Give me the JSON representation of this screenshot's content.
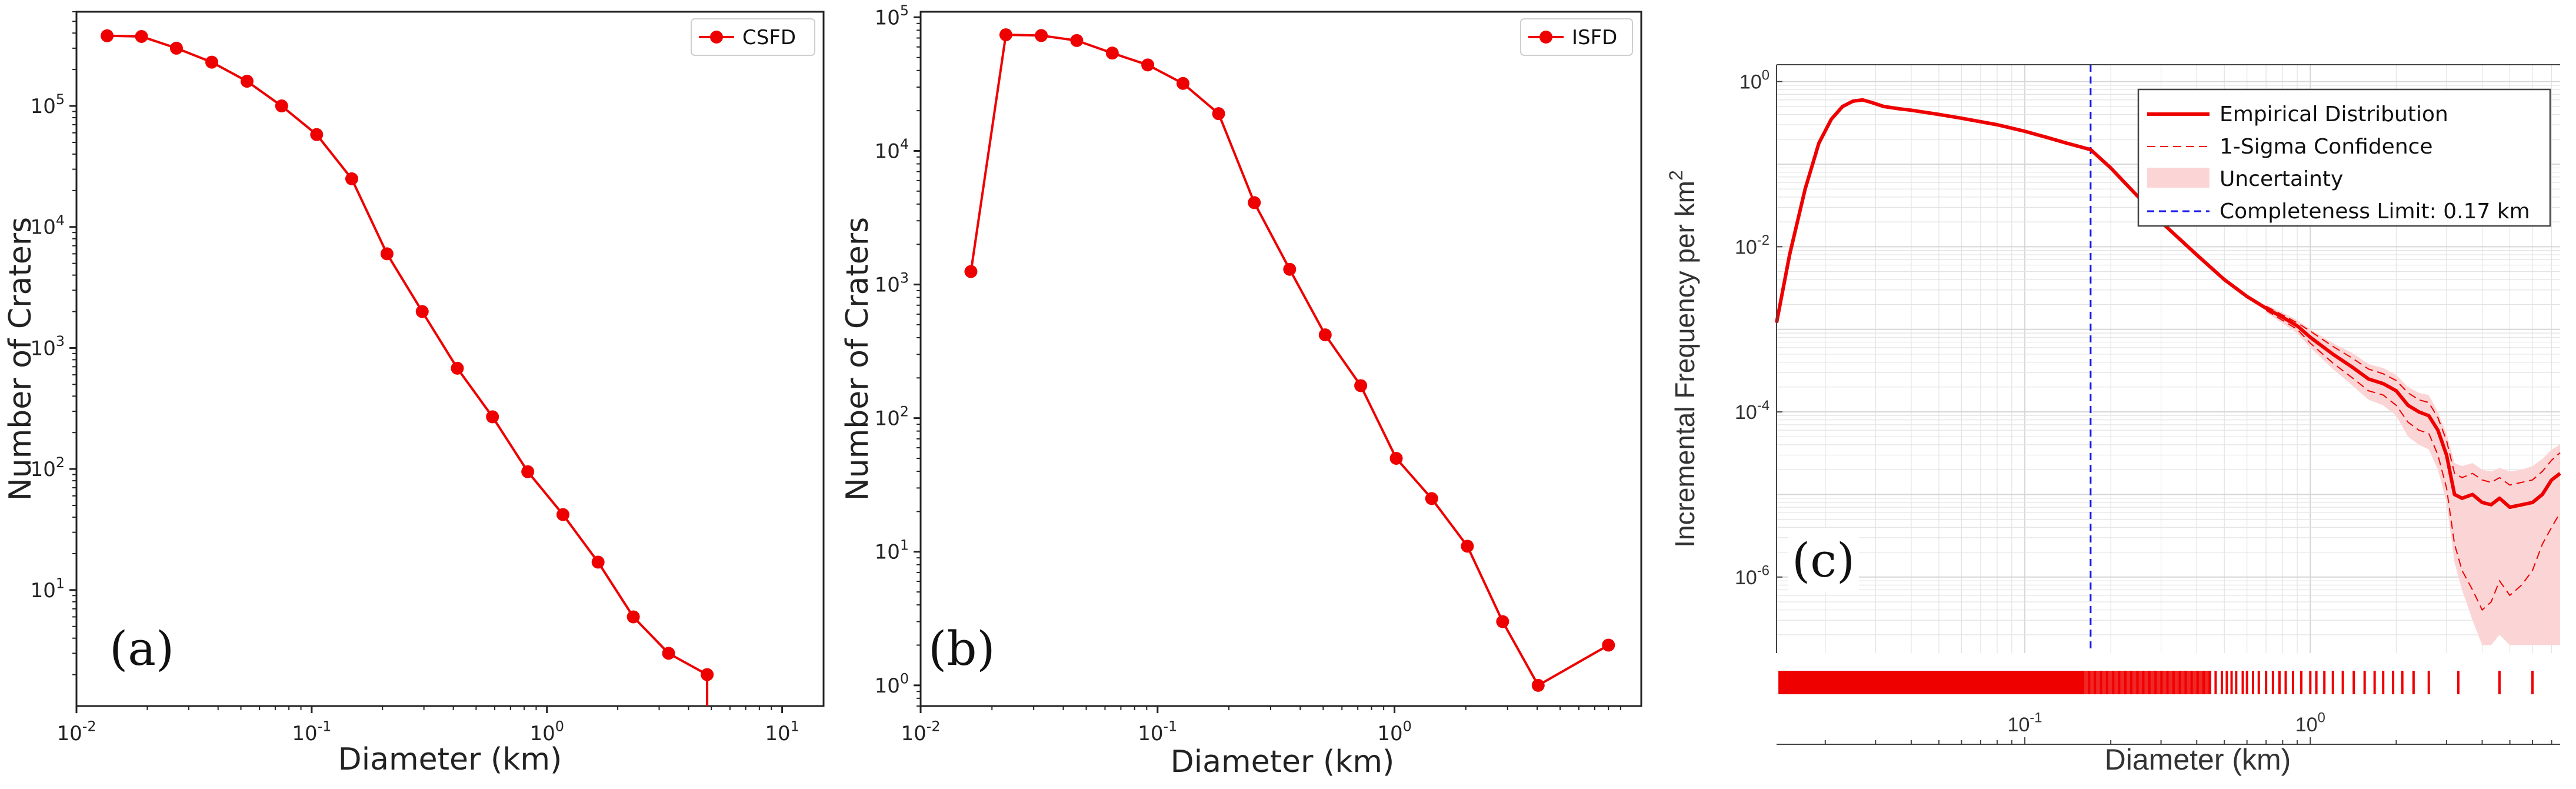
{
  "colors": {
    "series": "#ee0000",
    "band": "#fbd5d5",
    "limit": "#1a1aee",
    "axis": "#222222",
    "grid": "#e3e3e3"
  },
  "chart_data": [
    {
      "id": "a",
      "type": "line",
      "panel_label": "(a)",
      "xlabel": "Diameter (km)",
      "ylabel": "Number of Craters",
      "xscale": "log",
      "yscale": "log",
      "xlim": [
        0.01,
        15
      ],
      "ylim": [
        1.1,
        600000
      ],
      "xticks": [
        {
          "v": 0.01,
          "b": "10",
          "e": "-2"
        },
        {
          "v": 0.1,
          "b": "10",
          "e": "-1"
        },
        {
          "v": 1,
          "b": "10",
          "e": "0"
        },
        {
          "v": 10,
          "b": "10",
          "e": "1"
        }
      ],
      "yticks": [
        {
          "v": 10,
          "b": "10",
          "e": "1"
        },
        {
          "v": 100,
          "b": "10",
          "e": "2"
        },
        {
          "v": 1000,
          "b": "10",
          "e": "3"
        },
        {
          "v": 10000,
          "b": "10",
          "e": "4"
        },
        {
          "v": 100000,
          "b": "10",
          "e": "5"
        }
      ],
      "legend": "CSFD",
      "legend_position": "top-right",
      "markers": true,
      "x": [
        0.0135,
        0.0189,
        0.0266,
        0.0376,
        0.0531,
        0.0745,
        0.105,
        0.148,
        0.209,
        0.295,
        0.416,
        0.587,
        0.829,
        1.17,
        1.65,
        2.33,
        3.29,
        4.8
      ],
      "y": [
        380000,
        375000,
        300000,
        230000,
        160000,
        100000,
        58000,
        25000,
        6000,
        2000,
        680,
        270,
        95,
        42,
        17,
        6,
        3,
        2
      ],
      "drop_to_axis_at": 4.8
    },
    {
      "id": "b",
      "type": "line",
      "panel_label": "(b)",
      "xlabel": "Diameter (km)",
      "ylabel": "Number of Craters",
      "xscale": "log",
      "yscale": "log",
      "xlim": [
        0.01,
        11
      ],
      "ylim": [
        0.7,
        110000
      ],
      "xticks": [
        {
          "v": 0.01,
          "b": "10",
          "e": "-2"
        },
        {
          "v": 0.1,
          "b": "10",
          "e": "-1"
        },
        {
          "v": 1,
          "b": "10",
          "e": "0"
        }
      ],
      "yticks": [
        {
          "v": 1,
          "b": "10",
          "e": "0"
        },
        {
          "v": 10,
          "b": "10",
          "e": "1"
        },
        {
          "v": 100,
          "b": "10",
          "e": "2"
        },
        {
          "v": 1000,
          "b": "10",
          "e": "3"
        },
        {
          "v": 10000,
          "b": "10",
          "e": "4"
        },
        {
          "v": 100000,
          "b": "10",
          "e": "5"
        }
      ],
      "legend": "ISFD",
      "legend_position": "top-right",
      "markers": true,
      "x": [
        0.0163,
        0.0229,
        0.0323,
        0.0456,
        0.0644,
        0.0909,
        0.128,
        0.181,
        0.256,
        0.361,
        0.51,
        0.72,
        1.017,
        1.435,
        2.03,
        2.86,
        4.04,
        8.0
      ],
      "y": [
        1250,
        74000,
        73000,
        67000,
        54000,
        44000,
        32000,
        19000,
        4100,
        1300,
        420,
        175,
        50,
        25,
        11,
        3,
        1,
        2
      ]
    },
    {
      "id": "c",
      "type": "line",
      "panel_label": "(c)",
      "xlabel": "Diameter (km)",
      "ylabel": "Incremental Frequency per km",
      "ylabel_superscript": "2",
      "xscale": "log",
      "yscale": "log",
      "xlim": [
        0.0135,
        7.5
      ],
      "ylim": [
        1.2e-07,
        1.6
      ],
      "xticks": [
        {
          "v": 0.1,
          "b": "10",
          "e": "-1"
        },
        {
          "v": 1,
          "b": "10",
          "e": "0"
        }
      ],
      "yticks": [
        {
          "v": 1e-06,
          "b": "10",
          "e": "-6"
        },
        {
          "v": 0.0001,
          "b": "10",
          "e": "-4"
        },
        {
          "v": 0.01,
          "b": "10",
          "e": "-2"
        },
        {
          "v": 1,
          "b": "10",
          "e": "0"
        }
      ],
      "legend_position": "top-right",
      "legend_entries": [
        "Empirical Distribution",
        "1-Sigma Confidence",
        "Uncertainty",
        "Completeness Limit: 0.17 km"
      ],
      "completeness_limit_km": 0.17,
      "series": [
        {
          "name": "Empirical Distribution",
          "x": [
            0.0135,
            0.015,
            0.017,
            0.019,
            0.021,
            0.023,
            0.025,
            0.027,
            0.029,
            0.032,
            0.036,
            0.04,
            0.05,
            0.06,
            0.08,
            0.1,
            0.12,
            0.14,
            0.17,
            0.2,
            0.25,
            0.3,
            0.4,
            0.5,
            0.6,
            0.7,
            0.8,
            0.9,
            1.0,
            1.2,
            1.4,
            1.6,
            1.8,
            2.0,
            2.2,
            2.4,
            2.6,
            2.8,
            3.0,
            3.2,
            3.4,
            3.7,
            4.0,
            4.3,
            4.6,
            5.0,
            5.5,
            6.0,
            6.5,
            7.0,
            7.5
          ],
          "y": [
            0.0012,
            0.008,
            0.05,
            0.18,
            0.35,
            0.5,
            0.58,
            0.6,
            0.56,
            0.5,
            0.47,
            0.45,
            0.4,
            0.36,
            0.3,
            0.25,
            0.21,
            0.18,
            0.15,
            0.09,
            0.04,
            0.02,
            0.008,
            0.004,
            0.0025,
            0.0018,
            0.0014,
            0.0011,
            0.0008,
            0.0005,
            0.00035,
            0.00025,
            0.00022,
            0.00018,
            0.00012,
            0.0001,
            9e-05,
            6e-05,
            3e-05,
            1e-05,
            9e-06,
            1e-05,
            8e-06,
            7.5e-06,
            9e-06,
            7e-06,
            7.5e-06,
            8e-06,
            1e-05,
            1.5e-05,
            1.8e-05
          ]
        },
        {
          "name": "1-Sigma Confidence (upper)",
          "x": [
            0.7,
            0.9,
            1.0,
            1.2,
            1.4,
            1.6,
            1.8,
            2.0,
            2.2,
            2.4,
            2.6,
            2.8,
            3.0,
            3.2,
            3.4,
            3.7,
            4.0,
            4.3,
            4.6,
            5.0,
            5.5,
            6.0,
            6.5,
            7.0,
            7.5
          ],
          "y": [
            0.0019,
            0.0012,
            0.00095,
            0.00062,
            0.00045,
            0.00033,
            0.00029,
            0.00024,
            0.00017,
            0.00014,
            0.00013,
            8.5e-05,
            4.5e-05,
            1.8e-05,
            1.6e-05,
            1.8e-05,
            1.5e-05,
            1.4e-05,
            1.6e-05,
            1.3e-05,
            1.4e-05,
            1.5e-05,
            1.9e-05,
            2.6e-05,
            3.2e-05
          ]
        },
        {
          "name": "1-Sigma Confidence (lower)",
          "x": [
            0.7,
            0.9,
            1.0,
            1.2,
            1.4,
            1.6,
            1.8,
            2.0,
            2.2,
            2.4,
            2.6,
            2.8,
            3.0,
            3.2,
            3.4,
            3.7,
            4.0,
            4.3,
            4.6,
            5.0,
            5.5,
            6.0,
            6.5,
            7.0,
            7.5
          ],
          "y": [
            0.0017,
            0.001,
            0.00068,
            0.00039,
            0.00026,
            0.00018,
            0.00016,
            0.00012,
            7.5e-05,
            6e-05,
            5.5e-05,
            3e-05,
            1.2e-05,
            2.5e-06,
            1.2e-06,
            7e-07,
            4e-07,
            5e-07,
            9e-07,
            6e-07,
            8e-07,
            1.2e-06,
            2.5e-06,
            4e-06,
            6e-06
          ]
        },
        {
          "name": "Uncertainty (upper)",
          "x": [
            0.7,
            0.9,
            1.0,
            1.2,
            1.4,
            1.6,
            1.8,
            2.0,
            2.2,
            2.4,
            2.6,
            2.8,
            3.0,
            3.2,
            3.4,
            3.7,
            4.0,
            4.3,
            4.6,
            5.0,
            5.5,
            6.0,
            6.5,
            7.0,
            7.5
          ],
          "y": [
            0.002,
            0.0013,
            0.001,
            0.00068,
            0.00052,
            0.00038,
            0.00034,
            0.00028,
            0.0002,
            0.00017,
            0.00016,
            0.0001,
            5.5e-05,
            2.4e-05,
            2.2e-05,
            2.4e-05,
            2e-05,
            1.9e-05,
            2.1e-05,
            1.9e-05,
            2e-05,
            2.2e-05,
            2.7e-05,
            3.5e-05,
            4e-05
          ]
        },
        {
          "name": "Uncertainty (lower)",
          "x": [
            0.7,
            0.9,
            1.0,
            1.2,
            1.4,
            1.6,
            1.8,
            2.0,
            2.2,
            2.4,
            2.6,
            2.8,
            3.0,
            3.2,
            3.4,
            3.7,
            4.0,
            4.3,
            4.6,
            5.0,
            5.5,
            6.0,
            6.5,
            7.0,
            7.5
          ],
          "y": [
            0.0016,
            0.0009,
            0.0006,
            0.00033,
            0.00021,
            0.00014,
            0.00012,
            9e-05,
            5e-05,
            4e-05,
            3.5e-05,
            2e-05,
            8e-06,
            1.5e-06,
            7e-07,
            3e-07,
            1.5e-07,
            1.5e-07,
            2e-07,
            1.5e-07,
            1.5e-07,
            1.5e-07,
            1.5e-07,
            1.5e-07,
            1.5e-07
          ]
        }
      ],
      "rug_x": [
        0.014,
        0.015,
        0.016,
        0.017,
        0.018,
        0.019,
        0.02,
        0.021,
        0.022,
        0.023,
        0.024,
        0.025,
        0.026,
        0.027,
        0.028,
        0.029,
        0.03,
        0.032,
        0.034,
        0.036,
        0.038,
        0.04,
        0.042,
        0.044,
        0.046,
        0.048,
        0.05,
        0.053,
        0.056,
        0.059,
        0.062,
        0.065,
        0.068,
        0.071,
        0.074,
        0.078,
        0.082,
        0.086,
        0.09,
        0.095,
        0.1,
        0.105,
        0.11,
        0.115,
        0.12,
        0.126,
        0.132,
        0.138,
        0.145,
        0.152,
        0.16,
        0.168,
        0.176,
        0.185,
        0.194,
        0.204,
        0.214,
        0.225,
        0.236,
        0.248,
        0.26,
        0.273,
        0.287,
        0.301,
        0.316,
        0.332,
        0.349,
        0.366,
        0.384,
        0.403,
        0.423,
        0.444,
        0.466,
        0.49,
        0.51,
        0.53,
        0.55,
        0.58,
        0.6,
        0.63,
        0.66,
        0.7,
        0.74,
        0.78,
        0.82,
        0.87,
        0.93,
        1.0,
        1.05,
        1.12,
        1.2,
        1.3,
        1.42,
        1.55,
        1.68,
        1.8,
        1.95,
        2.1,
        2.3,
        2.6,
        3.3,
        4.6,
        6.0
      ]
    }
  ]
}
